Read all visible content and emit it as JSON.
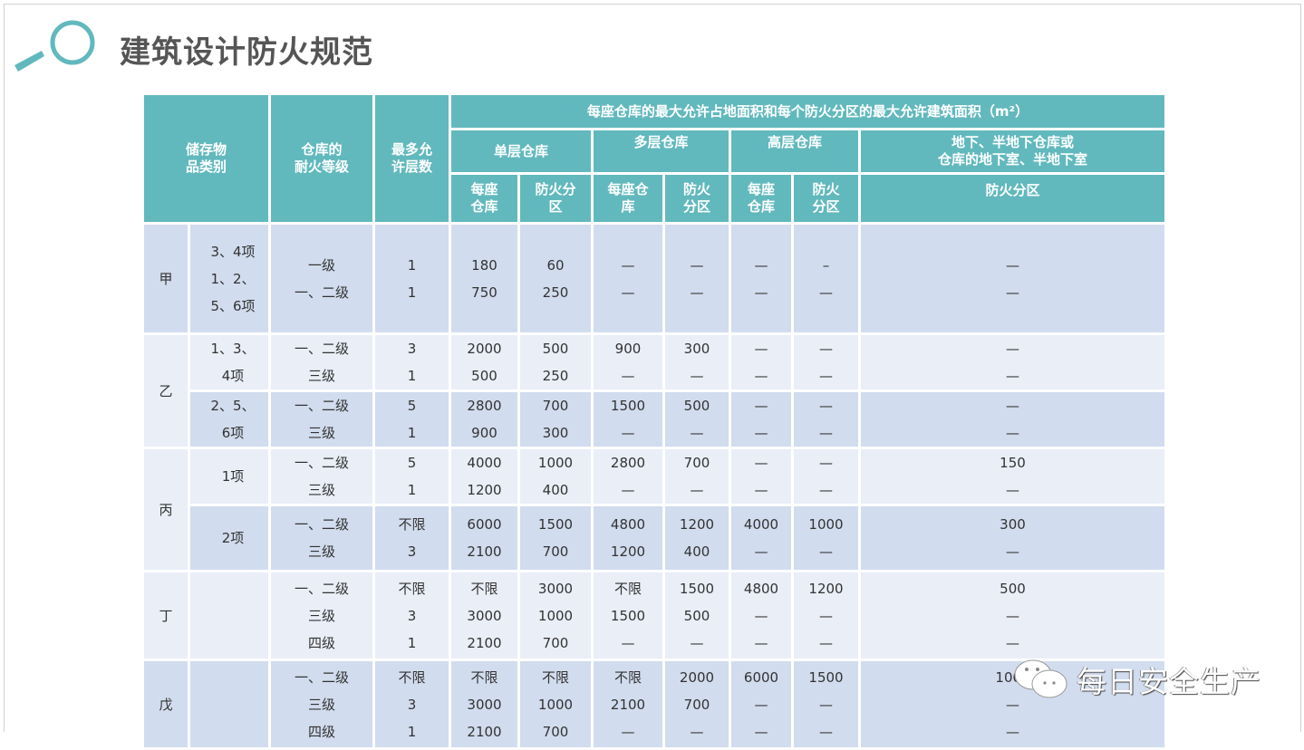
{
  "title": "建筑设计防火规范",
  "watermark": "每日安全生产",
  "colors": {
    "header": "#62b9bd",
    "row_dark": "#d1dcee",
    "row_light": "#e9eef7",
    "title": "#555555"
  },
  "header": {
    "category": "储存物品类别",
    "category_lines": [
      "储存物",
      "品类别"
    ],
    "grade_lines": [
      "仓库的",
      "耐火等级"
    ],
    "floors_lines": [
      "最多允",
      "许层数"
    ],
    "area_title": "每座仓库的最大允许占地面积和每个防火分区的最大允许建筑面积（m²）",
    "groups": [
      {
        "label_lines": [
          "单层仓库"
        ]
      },
      {
        "label_lines": [
          "多层仓库"
        ]
      },
      {
        "label_lines": [
          "高层仓库"
        ]
      },
      {
        "label_lines": [
          "地下、半地下仓库或",
          "仓库的地下室、半地下室"
        ]
      }
    ],
    "subcols": [
      [
        "每座",
        "仓库"
      ],
      [
        "防火分",
        "区"
      ],
      [
        "每座仓",
        "库"
      ],
      [
        "防火",
        "分区"
      ],
      [
        "每座",
        "仓库"
      ],
      [
        "防火",
        "分区"
      ],
      [
        "防火分区"
      ]
    ]
  },
  "rows": [
    {
      "category": "甲",
      "span": 1,
      "tone": "dark",
      "item": [
        "3、4项",
        "1、2、",
        "5、6项"
      ],
      "grade": [
        "一级",
        "一、二级"
      ],
      "floors": [
        "1",
        "1"
      ],
      "values": [
        [
          "180",
          "750"
        ],
        [
          "60",
          "250"
        ],
        [
          "—",
          "—"
        ],
        [
          "—",
          "—"
        ],
        [
          "—",
          "—"
        ],
        [
          "–",
          "—"
        ],
        [
          "—",
          "—"
        ]
      ]
    },
    {
      "category": "乙",
      "span": 2,
      "tone": "light",
      "item": [
        "1、3、",
        "4项"
      ],
      "grade": [
        "一、二级",
        "三级"
      ],
      "floors": [
        "3",
        "1"
      ],
      "values": [
        [
          "2000",
          "500"
        ],
        [
          "500",
          "250"
        ],
        [
          "900",
          "—"
        ],
        [
          "300",
          "—"
        ],
        [
          "—",
          "—"
        ],
        [
          "—",
          "—"
        ],
        [
          "—",
          "—"
        ]
      ]
    },
    {
      "tone": "dark",
      "item": [
        "2、5、",
        "6项"
      ],
      "grade": [
        "一、二级",
        "三级"
      ],
      "floors": [
        "5",
        "1"
      ],
      "values": [
        [
          "2800",
          "900"
        ],
        [
          "700",
          "300"
        ],
        [
          "1500",
          "—"
        ],
        [
          "500",
          "—"
        ],
        [
          "—",
          "—"
        ],
        [
          "—",
          "—"
        ],
        [
          "—",
          "—"
        ]
      ]
    },
    {
      "category": "丙",
      "span": 2,
      "tone": "light",
      "item": [
        "1项"
      ],
      "grade": [
        "一、二级",
        "三级"
      ],
      "floors": [
        "5",
        "1"
      ],
      "values": [
        [
          "4000",
          "1200"
        ],
        [
          "1000",
          "400"
        ],
        [
          "2800",
          "—"
        ],
        [
          "700",
          "—"
        ],
        [
          "—",
          "—"
        ],
        [
          "—",
          "—"
        ],
        [
          "150",
          "—"
        ]
      ]
    },
    {
      "tone": "dark",
      "item": [
        "2项"
      ],
      "grade": [
        "一、二级",
        "三级"
      ],
      "floors": [
        "不限",
        "3"
      ],
      "values": [
        [
          "6000",
          "2100"
        ],
        [
          "1500",
          "700"
        ],
        [
          "4800",
          "1200"
        ],
        [
          "1200",
          "400"
        ],
        [
          "4000",
          "—"
        ],
        [
          "1000",
          "—"
        ],
        [
          "300",
          "—"
        ]
      ]
    },
    {
      "category": "丁",
      "span": 1,
      "tone": "light",
      "item": [],
      "grade": [
        "一、二级",
        "三级",
        "四级"
      ],
      "floors": [
        "不限",
        "3",
        "1"
      ],
      "values": [
        [
          "不限",
          "3000",
          "2100"
        ],
        [
          "3000",
          "1000",
          "700"
        ],
        [
          "不限",
          "1500",
          "—"
        ],
        [
          "1500",
          "500",
          "—"
        ],
        [
          "4800",
          "—",
          "—"
        ],
        [
          "1200",
          "—",
          "—"
        ],
        [
          "500",
          "—",
          "—"
        ]
      ]
    },
    {
      "category": "戊",
      "span": 1,
      "tone": "dark",
      "item": [],
      "grade": [
        "一、二级",
        "三级",
        "四级"
      ],
      "floors": [
        "不限",
        "3",
        "1"
      ],
      "values": [
        [
          "不限",
          "3000",
          "2100"
        ],
        [
          "不限",
          "1000",
          "700"
        ],
        [
          "不限",
          "2100",
          "—"
        ],
        [
          "2000",
          "700",
          "—"
        ],
        [
          "6000",
          "—",
          "—"
        ],
        [
          "1500",
          "—",
          "—"
        ],
        [
          "1000",
          "—",
          "—"
        ]
      ]
    }
  ]
}
